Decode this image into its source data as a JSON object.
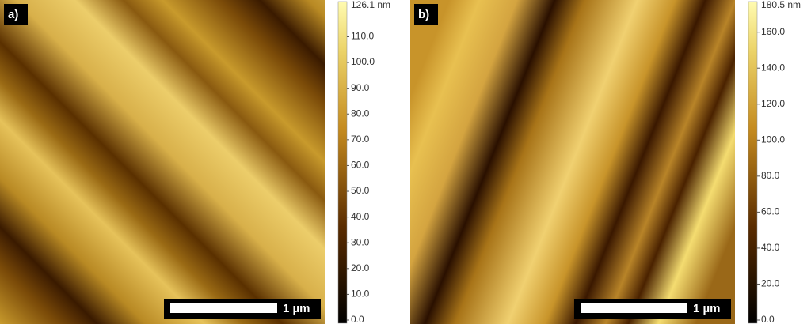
{
  "panels": [
    {
      "label": "a)",
      "scale_bar": "1 µm",
      "colorbar": {
        "range": [
          0,
          126.1
        ],
        "max_label": "126.1 nm",
        "ticks": [
          {
            "value": 0,
            "label": "0.0"
          },
          {
            "value": 10,
            "label": "10.0"
          },
          {
            "value": 20,
            "label": "20.0"
          },
          {
            "value": 30,
            "label": "30.0"
          },
          {
            "value": 40,
            "label": "40.0"
          },
          {
            "value": 50,
            "label": "50.0"
          },
          {
            "value": 60,
            "label": "60.0"
          },
          {
            "value": 70,
            "label": "70.0"
          },
          {
            "value": 80,
            "label": "80.0"
          },
          {
            "value": 90,
            "label": "90.0"
          },
          {
            "value": 100,
            "label": "100.0"
          },
          {
            "value": 110,
            "label": "110.0"
          }
        ]
      }
    },
    {
      "label": "b)",
      "scale_bar": "1 µm",
      "colorbar": {
        "range": [
          0,
          180.5
        ],
        "max_label": "180.5 nm",
        "ticks": [
          {
            "value": 0,
            "label": "0.0"
          },
          {
            "value": 20,
            "label": "20.0"
          },
          {
            "value": 40,
            "label": "40.0"
          },
          {
            "value": 60,
            "label": "60.0"
          },
          {
            "value": 80,
            "label": "80.0"
          },
          {
            "value": 100,
            "label": "100.0"
          },
          {
            "value": 120,
            "label": "120.0"
          },
          {
            "value": 140,
            "label": "140.0"
          },
          {
            "value": 160,
            "label": "160.0"
          }
        ]
      }
    }
  ]
}
